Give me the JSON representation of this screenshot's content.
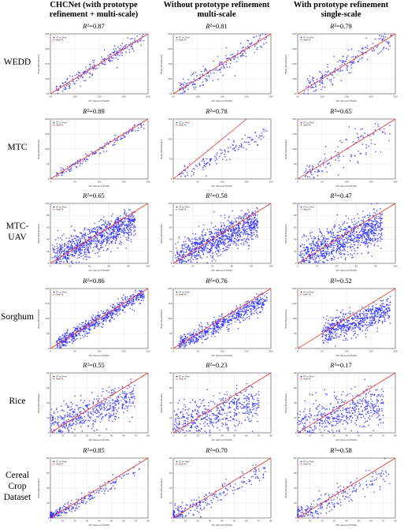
{
  "columns": [
    {
      "line1": "CHCNet (with prototype",
      "line2": "refinement + multi-scale)"
    },
    {
      "line1": "Without prototype refinement",
      "line2": "multi-scale"
    },
    {
      "line1": "With prototype refinement",
      "line2": "single-scale"
    }
  ],
  "rows": [
    {
      "label_lines": [
        "WEDD"
      ],
      "r2": [
        "0.87",
        "0.81",
        "0.79"
      ]
    },
    {
      "label_lines": [
        "MTC"
      ],
      "r2": [
        "0.89",
        "0.78",
        "0.65"
      ]
    },
    {
      "label_lines": [
        "MTC-",
        "UAV"
      ],
      "r2": [
        "0.65",
        "0.58",
        "0.47"
      ]
    },
    {
      "label_lines": [
        "Sorghum"
      ],
      "r2": [
        "0.86",
        "0.76",
        "0.52"
      ]
    },
    {
      "label_lines": [
        "Rice"
      ],
      "r2": [
        "0.55",
        "0.23",
        "0.17"
      ]
    },
    {
      "label_lines": [
        "Cereal",
        "Crop",
        "Dataset"
      ],
      "r2": [
        "0.85",
        "0.70",
        "0.58"
      ]
    }
  ],
  "r2_prefix": "R²=",
  "panel_text": {
    "legend_scatter": "GT vs. Pred",
    "legend_ideal": "Ideal Fit",
    "xlabel": "GT (Ground Truth)",
    "ylabel": "Pred (Prediction)"
  },
  "colors": {
    "points": "#2a2aff",
    "ideal_line": "#e8312a",
    "grid": "#dddddd",
    "frame": "#333333"
  },
  "chart_data": {
    "type": "scatter",
    "layout": "6 datasets x 3 model variants",
    "note": "Each panel: scatter of predicted vs ground-truth counts with ideal y=x line; R² printed above each panel",
    "panels": [
      {
        "dataset": "WEDD",
        "variant": "CHCNet",
        "r2": 0.87,
        "xlim": [
          50,
          250
        ],
        "ylim": [
          50,
          250
        ],
        "xticks": [
          50,
          100,
          150,
          200,
          250
        ],
        "yticks": [
          50,
          100,
          150,
          200,
          250
        ],
        "n": 200,
        "spread": 0.06,
        "slope": 1.0,
        "pattern": "linear"
      },
      {
        "dataset": "WEDD",
        "variant": "Without prototype refinement",
        "r2": 0.81,
        "xlim": [
          50,
          250
        ],
        "ylim": [
          50,
          250
        ],
        "xticks": [
          50,
          100,
          150,
          200,
          250
        ],
        "yticks": [
          50,
          100,
          150,
          200,
          250
        ],
        "n": 200,
        "spread": 0.08,
        "slope": 1.0,
        "pattern": "linear"
      },
      {
        "dataset": "WEDD",
        "variant": "With prototype refinement single-scale",
        "r2": 0.79,
        "xlim": [
          50,
          250
        ],
        "ylim": [
          50,
          250
        ],
        "xticks": [
          50,
          100,
          150,
          200,
          250
        ],
        "yticks": [
          50,
          100,
          150,
          200,
          250
        ],
        "n": 200,
        "spread": 0.09,
        "slope": 1.0,
        "pattern": "linear"
      },
      {
        "dataset": "MTC",
        "variant": "CHCNet",
        "r2": 0.89,
        "xlim": [
          0,
          200
        ],
        "ylim": [
          0,
          200
        ],
        "xticks": [
          0,
          50,
          100,
          150,
          200
        ],
        "yticks": [
          0,
          50,
          100,
          150,
          200
        ],
        "n": 130,
        "spread": 0.04,
        "slope": 0.97,
        "pattern": "linear"
      },
      {
        "dataset": "MTC",
        "variant": "Without prototype refinement",
        "r2": 0.78,
        "xlim": [
          0,
          200
        ],
        "ylim": [
          0,
          150
        ],
        "xticks": [
          0,
          50,
          100,
          150,
          200
        ],
        "yticks": [
          0,
          50,
          100,
          150
        ],
        "n": 130,
        "spread": 0.06,
        "slope": 0.62,
        "pattern": "linear"
      },
      {
        "dataset": "MTC",
        "variant": "With prototype refinement single-scale",
        "r2": 0.65,
        "xlim": [
          0,
          200
        ],
        "ylim": [
          0,
          200
        ],
        "xticks": [
          0,
          50,
          100,
          150,
          200
        ],
        "yticks": [
          0,
          50,
          100,
          150,
          200
        ],
        "n": 130,
        "spread": 0.12,
        "slope": 0.9,
        "pattern": "fan"
      },
      {
        "dataset": "MTC-UAV",
        "variant": "CHCNet",
        "r2": 0.65,
        "xlim": [
          0,
          100
        ],
        "ylim": [
          0,
          100
        ],
        "xticks": [
          0,
          20,
          40,
          60,
          80,
          100
        ],
        "yticks": [
          0,
          20,
          40,
          60,
          80,
          100
        ],
        "n": 900,
        "spread": 0.12,
        "slope": 0.72,
        "pattern": "dense"
      },
      {
        "dataset": "MTC-UAV",
        "variant": "Without prototype refinement",
        "r2": 0.58,
        "xlim": [
          0,
          100
        ],
        "ylim": [
          0,
          100
        ],
        "xticks": [
          0,
          20,
          40,
          60,
          80,
          100
        ],
        "yticks": [
          0,
          20,
          40,
          60,
          80,
          100
        ],
        "n": 900,
        "spread": 0.13,
        "slope": 0.7,
        "pattern": "dense"
      },
      {
        "dataset": "MTC-UAV",
        "variant": "With prototype refinement single-scale",
        "r2": 0.47,
        "xlim": [
          0,
          100
        ],
        "ylim": [
          0,
          100
        ],
        "xticks": [
          0,
          20,
          40,
          60,
          80,
          100
        ],
        "yticks": [
          0,
          20,
          40,
          60,
          80,
          100
        ],
        "n": 900,
        "spread": 0.15,
        "slope": 0.65,
        "pattern": "dense"
      },
      {
        "dataset": "Sorghum",
        "variant": "CHCNet",
        "r2": 0.86,
        "xlim": [
          0,
          200
        ],
        "ylim": [
          0,
          200
        ],
        "xticks": [
          0,
          50,
          100,
          150,
          200
        ],
        "yticks": [
          0,
          50,
          100,
          150,
          200
        ],
        "n": 600,
        "spread": 0.06,
        "slope": 0.95,
        "pattern": "linear"
      },
      {
        "dataset": "Sorghum",
        "variant": "Without prototype refinement",
        "r2": 0.76,
        "xlim": [
          0,
          200
        ],
        "ylim": [
          0,
          200
        ],
        "xticks": [
          0,
          50,
          100,
          150,
          200
        ],
        "yticks": [
          0,
          50,
          100,
          150,
          200
        ],
        "n": 600,
        "spread": 0.07,
        "slope": 0.85,
        "pattern": "linear"
      },
      {
        "dataset": "Sorghum",
        "variant": "With prototype refinement single-scale",
        "r2": 0.52,
        "xlim": [
          0,
          200
        ],
        "ylim": [
          0,
          200
        ],
        "xticks": [
          0,
          50,
          100,
          150,
          200
        ],
        "yticks": [
          0,
          50,
          100,
          150,
          200
        ],
        "n": 600,
        "spread": 0.1,
        "slope": 0.55,
        "pattern": "cloud"
      },
      {
        "dataset": "Rice",
        "variant": "CHCNet",
        "r2": 0.55,
        "xlim": [
          0,
          80
        ],
        "ylim": [
          0,
          80
        ],
        "xticks": [
          0,
          10,
          20,
          30,
          40,
          50,
          60,
          70,
          80
        ],
        "yticks": [
          0,
          20,
          40,
          60,
          80
        ],
        "n": 500,
        "spread": 0.13,
        "slope": 0.55,
        "pattern": "banded"
      },
      {
        "dataset": "Rice",
        "variant": "Without prototype refinement",
        "r2": 0.23,
        "xlim": [
          0,
          80
        ],
        "ylim": [
          0,
          80
        ],
        "xticks": [
          0,
          10,
          20,
          30,
          40,
          50,
          60,
          70,
          80
        ],
        "yticks": [
          0,
          20,
          40,
          60,
          80
        ],
        "n": 500,
        "spread": 0.16,
        "slope": 0.45,
        "pattern": "banded"
      },
      {
        "dataset": "Rice",
        "variant": "With prototype refinement single-scale",
        "r2": 0.17,
        "xlim": [
          0,
          80
        ],
        "ylim": [
          0,
          80
        ],
        "xticks": [
          0,
          10,
          20,
          30,
          40,
          50,
          60,
          70,
          80
        ],
        "yticks": [
          0,
          20,
          40,
          60,
          80
        ],
        "n": 500,
        "spread": 0.17,
        "slope": 0.42,
        "pattern": "banded"
      },
      {
        "dataset": "Cereal Crop Dataset",
        "variant": "CHCNet",
        "r2": 0.85,
        "xlim": [
          0,
          80
        ],
        "ylim": [
          0,
          80
        ],
        "xticks": [
          0,
          10,
          20,
          30,
          40,
          50,
          60,
          70,
          80
        ],
        "yticks": [
          0,
          20,
          40,
          60,
          80
        ],
        "n": 250,
        "spread": 0.05,
        "slope": 0.9,
        "pattern": "clustered"
      },
      {
        "dataset": "Cereal Crop Dataset",
        "variant": "Without prototype refinement",
        "r2": 0.7,
        "xlim": [
          0,
          80
        ],
        "ylim": [
          0,
          80
        ],
        "xticks": [
          0,
          10,
          20,
          30,
          40,
          50,
          60,
          70,
          80
        ],
        "yticks": [
          0,
          20,
          40,
          60,
          80
        ],
        "n": 250,
        "spread": 0.08,
        "slope": 0.85,
        "pattern": "clustered"
      },
      {
        "dataset": "Cereal Crop Dataset",
        "variant": "With prototype refinement single-scale",
        "r2": 0.58,
        "xlim": [
          0,
          80
        ],
        "ylim": [
          0,
          80
        ],
        "xticks": [
          0,
          10,
          20,
          30,
          40,
          50,
          60,
          70,
          80
        ],
        "yticks": [
          0,
          20,
          40,
          60,
          80
        ],
        "n": 250,
        "spread": 0.1,
        "slope": 0.8,
        "pattern": "clustered"
      }
    ]
  }
}
